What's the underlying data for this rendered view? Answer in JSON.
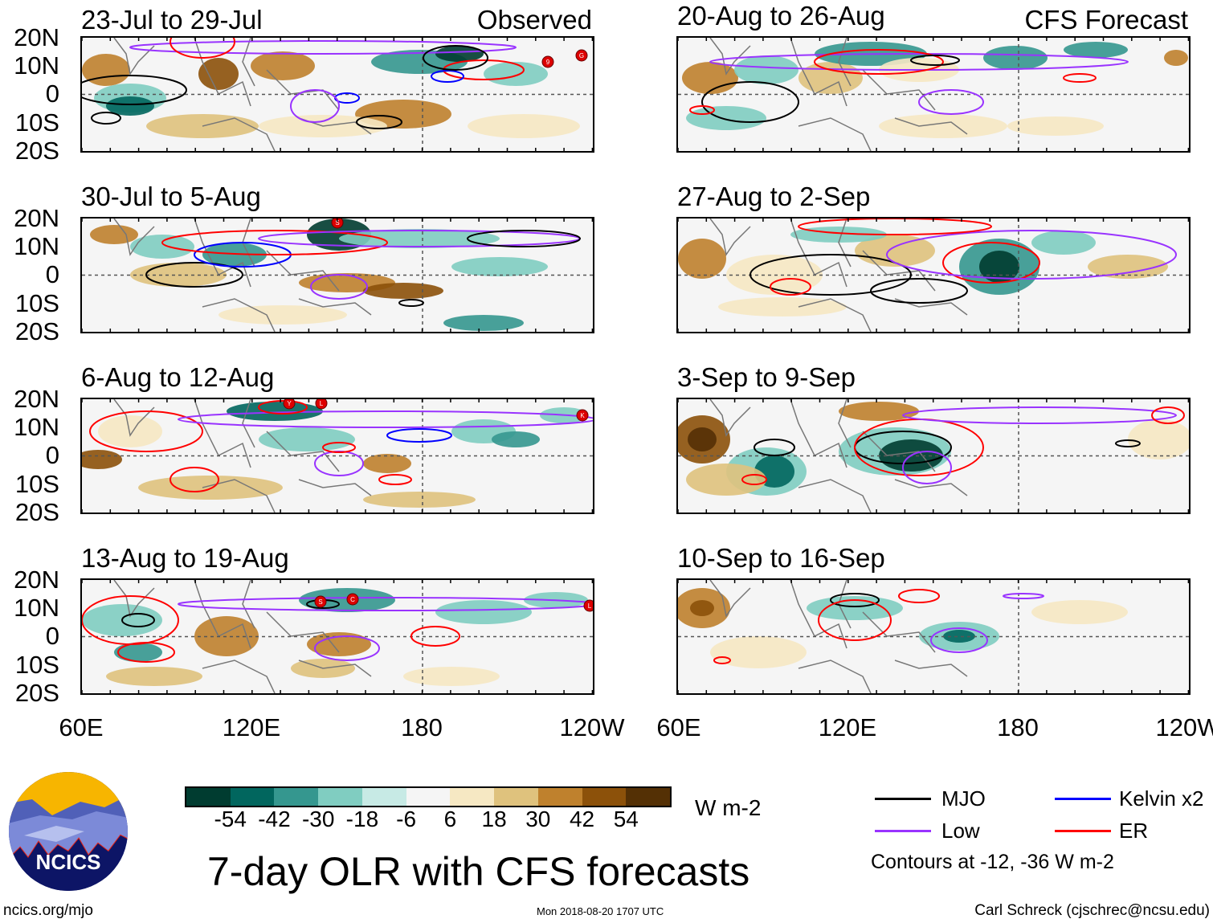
{
  "panels": {
    "observed_label": "Observed",
    "forecast_label": "CFS Forecast",
    "left": [
      {
        "title": "23-Jul to 29-Jul"
      },
      {
        "title": "30-Jul to 5-Aug"
      },
      {
        "title": "6-Aug to 12-Aug"
      },
      {
        "title": "13-Aug to 19-Aug"
      }
    ],
    "right": [
      {
        "title": "20-Aug to 26-Aug"
      },
      {
        "title": "27-Aug to 2-Sep"
      },
      {
        "title": "3-Sep to 9-Sep"
      },
      {
        "title": "10-Sep to 16-Sep"
      }
    ]
  },
  "axes": {
    "lat_labels": [
      "20N",
      "10N",
      "0",
      "10S",
      "20S"
    ],
    "lon_labels": [
      "60E",
      "120E",
      "180",
      "120W"
    ]
  },
  "storm_markers": {
    "p0": [
      "9",
      "G"
    ],
    "p1": [
      "S"
    ],
    "p2": [
      "Y",
      "L",
      "K"
    ],
    "p3": [
      "S",
      "C",
      "L"
    ]
  },
  "colorbar": {
    "colors": [
      "#003c30",
      "#01665e",
      "#35978f",
      "#80cdc1",
      "#c7eae5",
      "#f5f5f5",
      "#f6e8c3",
      "#dfc27d",
      "#bf812d",
      "#8c510a",
      "#543005"
    ],
    "labels": [
      "-54",
      "-42",
      "-30",
      "-18",
      "-6",
      "6",
      "18",
      "30",
      "42",
      "54"
    ],
    "units": "W m-2"
  },
  "title": "7-day OLR with CFS forecasts",
  "legend": {
    "items": [
      {
        "label": "MJO",
        "color": "#000000"
      },
      {
        "label": "Kelvin x2",
        "color": "#0000ff"
      },
      {
        "label": "Low",
        "color": "#9933ff"
      },
      {
        "label": "ER",
        "color": "#ff0000"
      }
    ],
    "note": "Contours at -12, -36 W m-2"
  },
  "logo": {
    "text": "NCICS"
  },
  "footer": {
    "url": "ncics.org/mjo",
    "timestamp": "Mon 2018-08-20 1707 UTC",
    "author": "Carl Schreck (cjschrec@ncsu.edu)"
  }
}
